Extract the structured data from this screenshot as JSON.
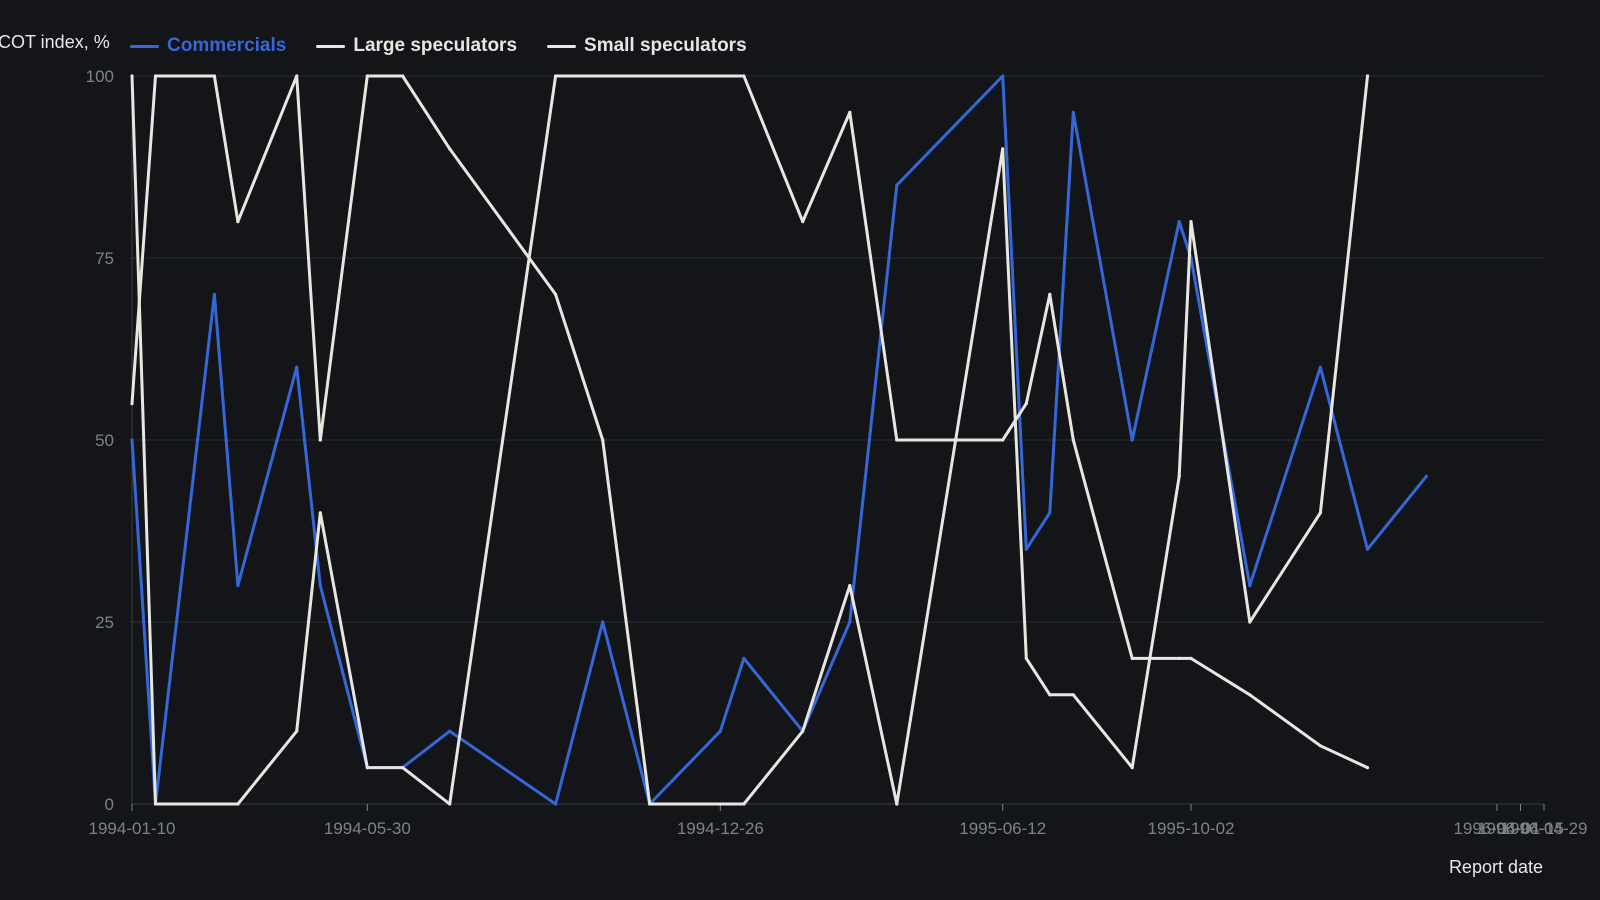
{
  "chart_data": {
    "type": "line",
    "ylabel": "COT index, %",
    "xlabel": "Report date",
    "ylim": [
      0,
      100
    ],
    "yticks": [
      0,
      25,
      50,
      75,
      100
    ],
    "grid": true,
    "legend_position": "top-left",
    "x": [
      "1994-01-10",
      "1994-01-24",
      "1994-02-28",
      "1994-03-14",
      "1994-04-18",
      "1994-05-02",
      "1994-05-30",
      "1994-06-20",
      "1994-07-18",
      "1994-09-19",
      "1994-10-17",
      "1994-11-14",
      "1994-12-26",
      "1995-01-09",
      "1995-02-13",
      "1995-03-13",
      "1995-04-10",
      "1995-06-12",
      "1995-06-26",
      "1995-07-10",
      "1995-07-24",
      "1995-08-28",
      "1995-09-25",
      "1995-10-02",
      "1995-11-06",
      "1995-12-18",
      "1996-01-15",
      "1996-02-19",
      "1996-03-04",
      "1996-04-01",
      "1996-04-15",
      "1996-04-29"
    ],
    "xticks": [
      "1994-01-10",
      "1994-05-30",
      "1994-12-26",
      "1995-06-12",
      "1995-10-02",
      "1996-04-01",
      "1996-04-15",
      "1996-04-29"
    ],
    "series": [
      {
        "name": "Commercials",
        "color": "#3567d8",
        "values": [
          50,
          0,
          70,
          30,
          60,
          30,
          5,
          5,
          10,
          0,
          25,
          0,
          10,
          20,
          10,
          25,
          85,
          100,
          35,
          40,
          95,
          50,
          80,
          75,
          30,
          60,
          35,
          45,
          null,
          null,
          null,
          null
        ]
      },
      {
        "name": "Large speculators",
        "color": "#e8e6e1",
        "values": [
          100,
          0,
          0,
          0,
          10,
          40,
          5,
          5,
          0,
          100,
          100,
          100,
          100,
          100,
          80,
          95,
          50,
          50,
          55,
          70,
          50,
          20,
          20,
          20,
          15,
          8,
          5,
          null,
          null,
          null,
          null,
          null
        ]
      },
      {
        "name": "Small speculators",
        "color": "#e8e6e1",
        "values": [
          55,
          100,
          100,
          80,
          100,
          50,
          100,
          100,
          90,
          70,
          50,
          0,
          0,
          0,
          10,
          30,
          0,
          90,
          20,
          15,
          15,
          5,
          45,
          80,
          25,
          40,
          100,
          null,
          null,
          null,
          null,
          null
        ]
      }
    ]
  }
}
